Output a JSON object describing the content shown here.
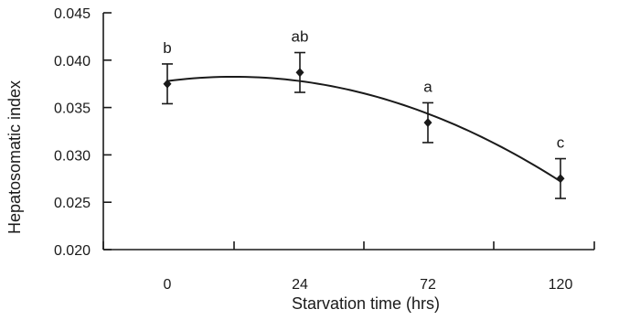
{
  "chart_data": {
    "type": "scatter",
    "xlabel": "Starvation time (hrs)",
    "ylabel": "Hepatosomatic index",
    "categories": [
      "0",
      "24",
      "72",
      "120"
    ],
    "values": [
      0.0375,
      0.0387,
      0.0334,
      0.0275
    ],
    "error": [
      0.0021,
      0.0021,
      0.0021,
      0.0021
    ],
    "significance_labels": [
      "b",
      "ab",
      "a",
      "c"
    ],
    "ylim": [
      0.02,
      0.045
    ],
    "yticks": [
      "0.020",
      "0.025",
      "0.030",
      "0.035",
      "0.040",
      "0.045"
    ],
    "trendline": "quadratic fit",
    "grid": false,
    "legend": "none"
  }
}
